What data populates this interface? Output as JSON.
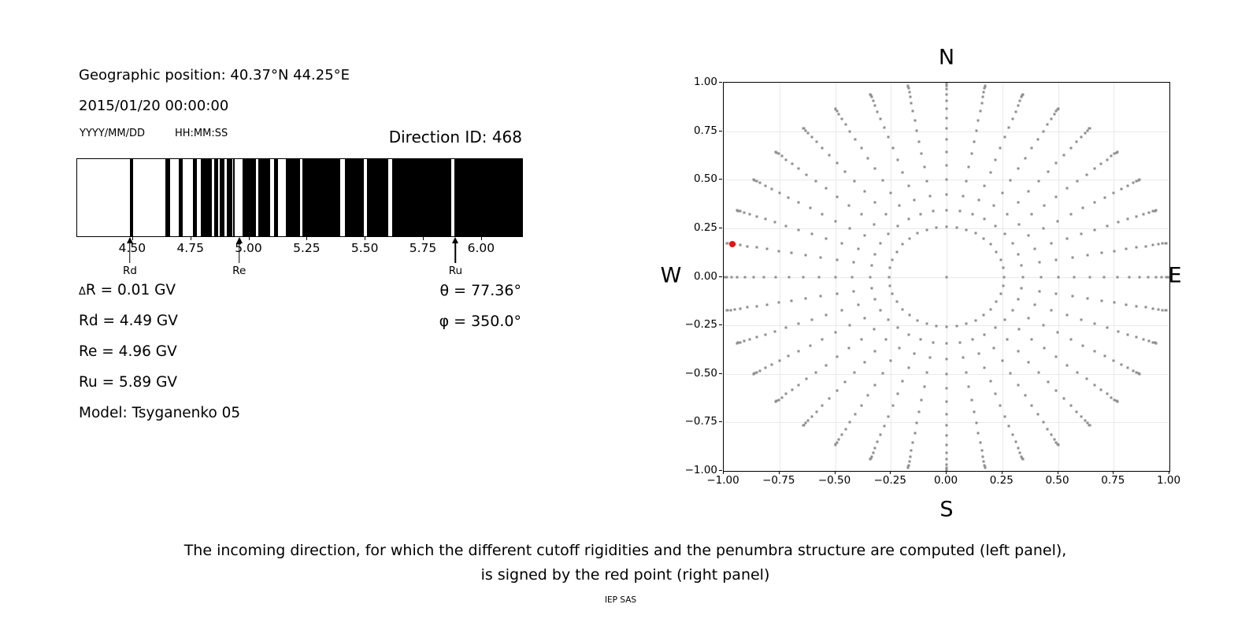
{
  "left_panel": {
    "geographic_position": "Geographic position: 40.37°N 44.25°E",
    "datetime": "2015/01/20 00:00:00",
    "date_format_label": "YYYY/MM/DD",
    "time_format_label": "HH:MM:SS",
    "direction_id": "Direction ID: 468",
    "penumbra": {
      "axis_min_gv": 4.26,
      "axis_max_gv": 6.18,
      "tick_values": [
        4.5,
        4.75,
        5.0,
        5.25,
        5.5,
        5.75,
        6.0
      ],
      "tick_labels": [
        "4.50",
        "4.75",
        "5.00",
        "5.25",
        "5.50",
        "5.75",
        "6.00"
      ],
      "black_bands_gv": [
        [
          4.489,
          4.502
        ],
        [
          4.642,
          4.661
        ],
        [
          4.698,
          4.717
        ],
        [
          4.76,
          4.777
        ],
        [
          4.794,
          4.84
        ],
        [
          4.851,
          4.868
        ],
        [
          4.876,
          4.894
        ],
        [
          4.905,
          4.928
        ],
        [
          4.933,
          4.941
        ],
        [
          4.975,
          5.032
        ],
        [
          5.043,
          5.094
        ],
        [
          5.108,
          5.126
        ],
        [
          5.16,
          5.221
        ],
        [
          5.233,
          5.396
        ],
        [
          5.414,
          5.496
        ],
        [
          5.511,
          5.604
        ],
        [
          5.62,
          5.873
        ],
        [
          5.889,
          6.18
        ]
      ],
      "arrow_markers": [
        {
          "label": "Rd",
          "value_gv": 4.49
        },
        {
          "label": "Re",
          "value_gv": 4.96
        },
        {
          "label": "Ru",
          "value_gv": 5.89
        }
      ]
    },
    "parameters": [
      {
        "prefix": "Δ",
        "text": "R = 0.01 GV"
      },
      {
        "prefix": "",
        "text": "Rd = 4.49 GV"
      },
      {
        "prefix": "",
        "text": "Re = 4.96 GV"
      },
      {
        "prefix": "",
        "text": "Ru = 5.89 GV"
      },
      {
        "prefix": "",
        "text": "Model: Tsyganenko 05"
      }
    ],
    "angles": [
      "θ = 77.36°",
      "φ = 350.0°"
    ]
  },
  "chart_data": {
    "type": "scatter",
    "title_top": "N",
    "label_bottom": "S",
    "label_left": "W",
    "label_right": "E",
    "xlim": [
      -1,
      1
    ],
    "ylim": [
      -1,
      1
    ],
    "xtick_values": [
      -1,
      -0.75,
      -0.5,
      -0.25,
      0,
      0.25,
      0.5,
      0.75,
      1
    ],
    "xtick_labels": [
      "−1.00",
      "−0.75",
      "−0.50",
      "−0.25",
      "0.00",
      "0.25",
      "0.50",
      "0.75",
      "1.00"
    ],
    "ytick_values": [
      1,
      0.75,
      0.5,
      0.25,
      0,
      -0.25,
      -0.5,
      -0.75,
      -1
    ],
    "ytick_labels": [
      "1.00",
      "0.75",
      "0.50",
      "0.25",
      "0.00",
      "−0.25",
      "−0.50",
      "−0.75",
      "−1.00"
    ],
    "grid": true,
    "grid_values": [
      -0.75,
      -0.5,
      -0.25,
      0,
      0.25,
      0.5,
      0.75
    ],
    "grid_color": "#e9e9e9",
    "dot_color": "#8e8e8e",
    "ray_pattern": {
      "azimuth_start_deg": 0,
      "azimuth_step_deg": 10,
      "azimuth_count": 36,
      "zenith_min_deg": 15,
      "zenith_max_deg": 90,
      "zenith_step_deg": 5,
      "radius_rule": "sin(zenith)"
    },
    "center_point": [
      0,
      0
    ],
    "red_point": {
      "x": -0.961,
      "y": 0.169,
      "zenith_deg": 77.36,
      "azimuth_deg": 350.0,
      "color": "#e81212"
    }
  },
  "caption": {
    "line1": "The incoming direction, for which the different cutoff rigidities and the penumbra structure are computed (left panel),",
    "line2": "is signed by the red point (right panel)",
    "footer": "IEP SAS"
  }
}
